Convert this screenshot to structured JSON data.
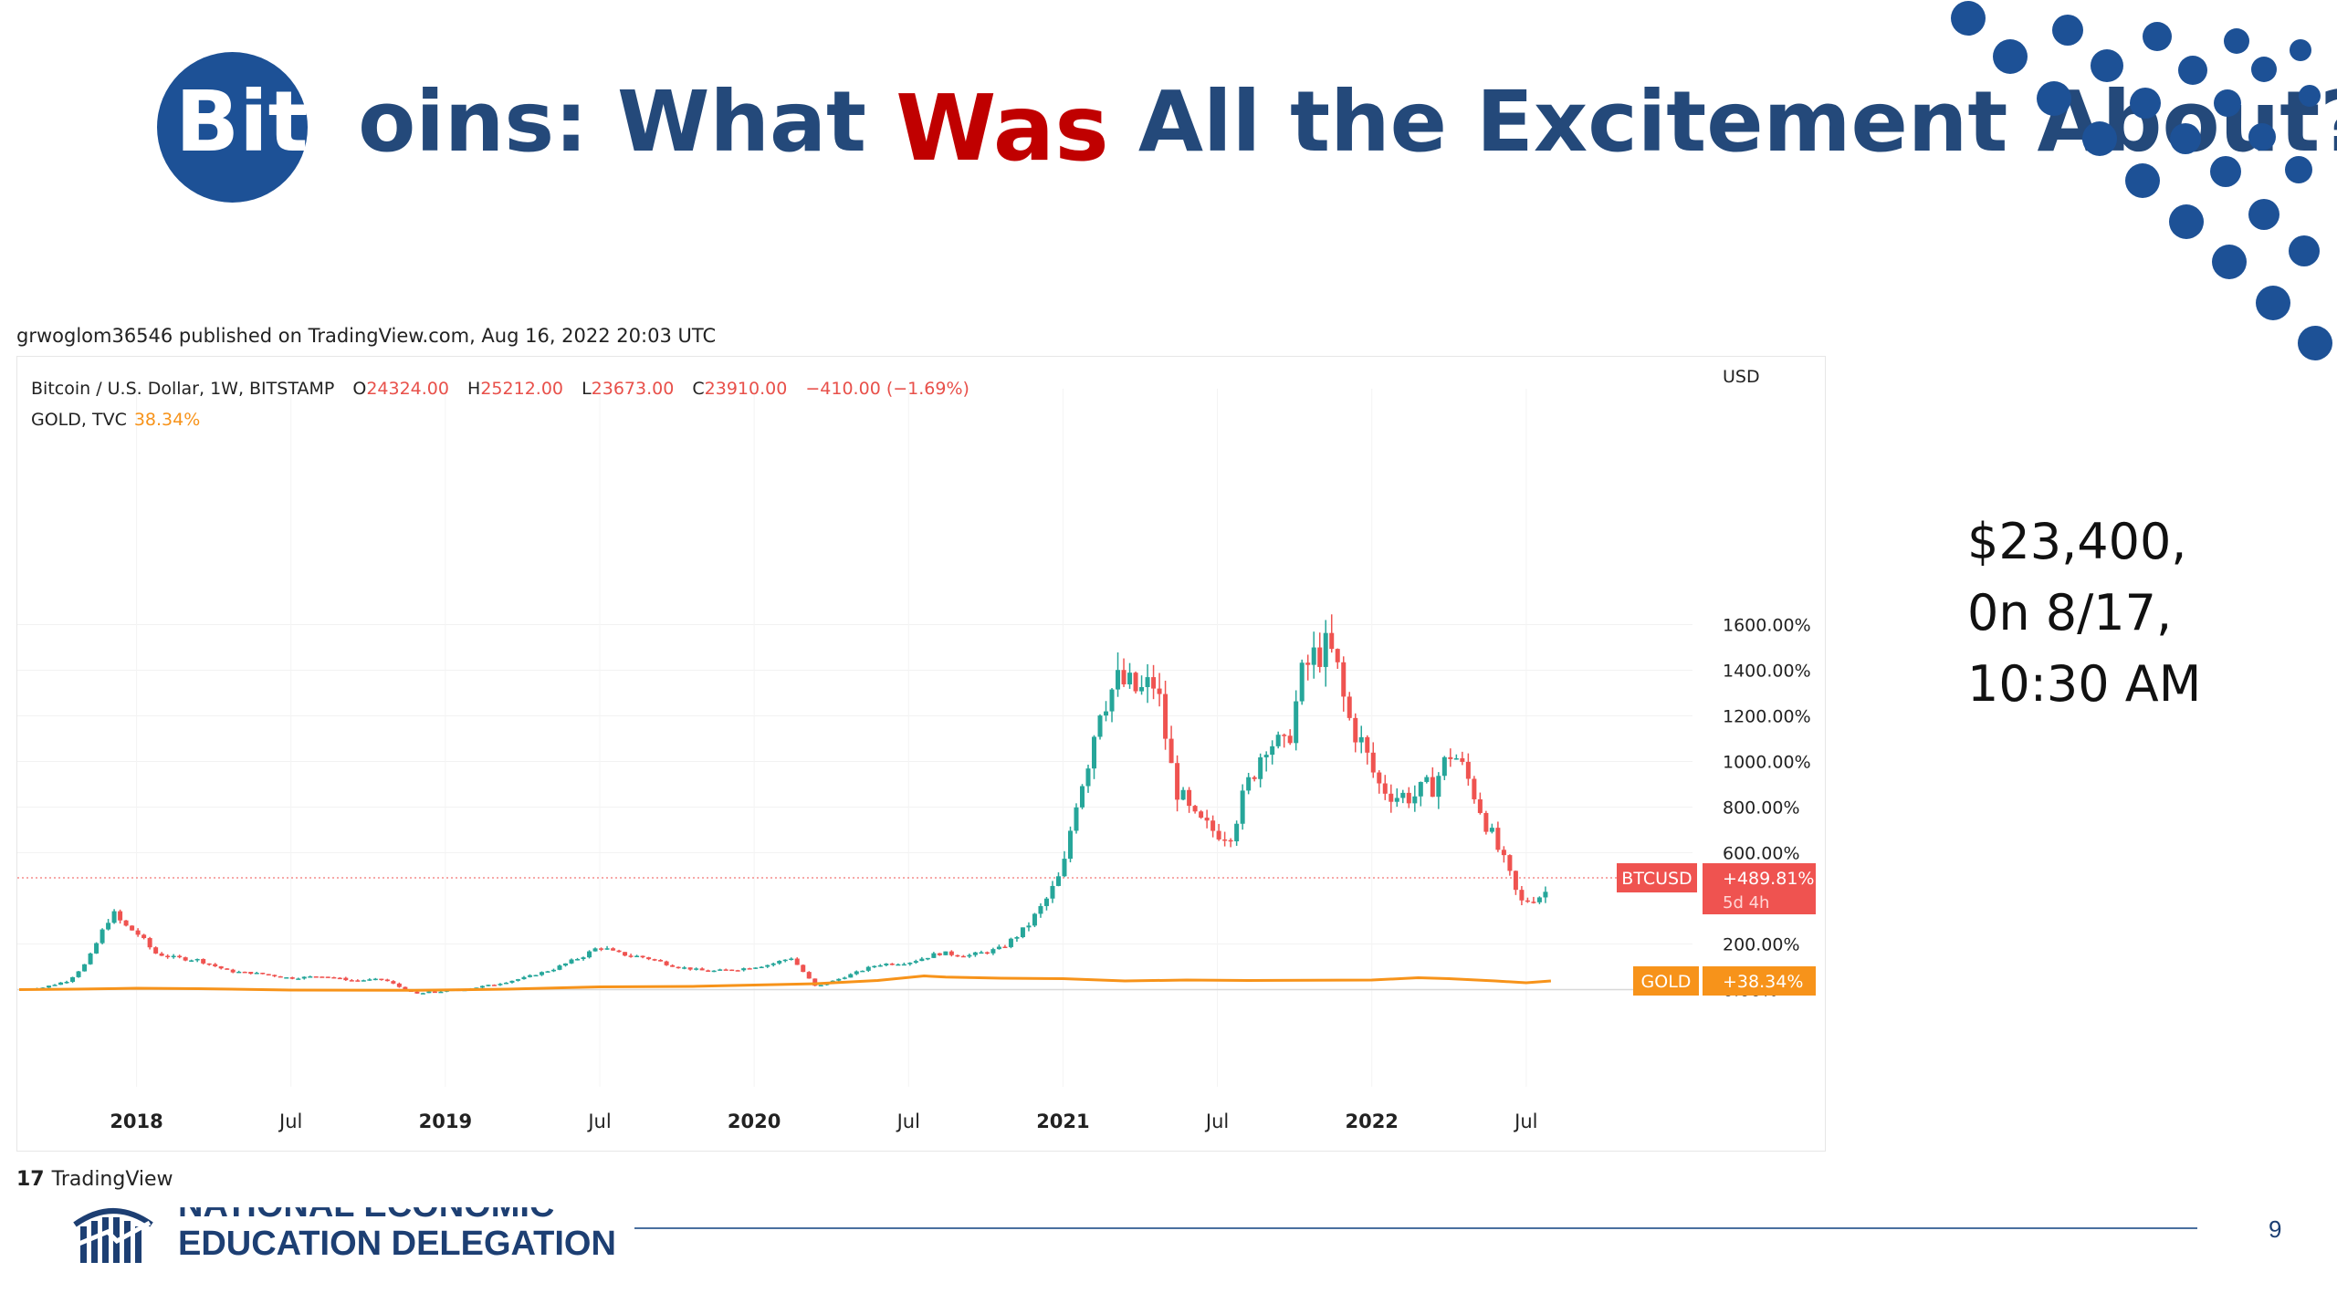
{
  "slide": {
    "title_part1": "Bitc",
    "title_part2": "oins: What ",
    "title_highlight": "Was",
    "title_part3": " All the Excitement About?",
    "price_note": [
      "$23,400,",
      "0n 8/17,",
      "10:30 AM"
    ],
    "page_number": "9",
    "organization": [
      "NATIONAL ECONOMIC",
      "EDUCATION DELEGATION"
    ],
    "colors": {
      "title": "#24497a",
      "highlight": "#c00000",
      "circle": "#1d5196",
      "dots": "#1d5196"
    }
  },
  "chart_header": {
    "publisher": "grwoglom36546 published on TradingView.com, Aug 16, 2022 20:03 UTC",
    "symbol": "Bitcoin / U.S. Dollar, 1W, BITSTAMP",
    "open_label": "O",
    "open": "24324.00",
    "high_label": "H",
    "high": "25212.00",
    "low_label": "L",
    "low": "23673.00",
    "close_label": "C",
    "close": "23910.00",
    "change": "−410.00 (−1.69%)",
    "compare_symbol": "GOLD, TVC",
    "compare_change": "38.34%",
    "branding": "TradingView"
  },
  "chart_data": {
    "type": "line",
    "y_unit": "USD",
    "y_ticks": [
      "0.00%",
      "200.00%",
      "600.00%",
      "800.00%",
      "1000.00%",
      "1200.00%",
      "1400.00%",
      "1600.00%"
    ],
    "ylim": [
      -50,
      1650
    ],
    "x_ticks": [
      {
        "label": "2018",
        "bold": true,
        "t": 2018.0
      },
      {
        "label": "Jul",
        "bold": false,
        "t": 2018.5
      },
      {
        "label": "2019",
        "bold": true,
        "t": 2019.0
      },
      {
        "label": "Jul",
        "bold": false,
        "t": 2019.5
      },
      {
        "label": "2020",
        "bold": true,
        "t": 2020.0
      },
      {
        "label": "Jul",
        "bold": false,
        "t": 2020.5
      },
      {
        "label": "2021",
        "bold": true,
        "t": 2021.0
      },
      {
        "label": "Jul",
        "bold": false,
        "t": 2021.5
      },
      {
        "label": "2022",
        "bold": true,
        "t": 2022.0
      },
      {
        "label": "Jul",
        "bold": false,
        "t": 2022.5
      }
    ],
    "xlim": [
      2017.62,
      2023.0
    ],
    "series": [
      {
        "name": "BTCUSD",
        "style": "candles",
        "colors": {
          "up": "#26a69a",
          "down": "#ef5350"
        },
        "last_label": "BTCUSD",
        "last_value": "+489.81%",
        "countdown": "5d 4h",
        "last_pct": 490,
        "points": [
          [
            2017.62,
            0
          ],
          [
            2017.7,
            10
          ],
          [
            2017.78,
            40
          ],
          [
            2017.84,
            120
          ],
          [
            2017.88,
            230
          ],
          [
            2017.92,
            340
          ],
          [
            2017.96,
            280
          ],
          [
            2018.0,
            250
          ],
          [
            2018.06,
            160
          ],
          [
            2018.12,
            140
          ],
          [
            2018.2,
            130
          ],
          [
            2018.3,
            80
          ],
          [
            2018.4,
            70
          ],
          [
            2018.5,
            50
          ],
          [
            2018.6,
            60
          ],
          [
            2018.7,
            40
          ],
          [
            2018.8,
            45
          ],
          [
            2018.9,
            -20
          ],
          [
            2018.96,
            -10
          ],
          [
            2019.05,
            0
          ],
          [
            2019.15,
            20
          ],
          [
            2019.25,
            50
          ],
          [
            2019.35,
            90
          ],
          [
            2019.45,
            150
          ],
          [
            2019.5,
            190
          ],
          [
            2019.55,
            160
          ],
          [
            2019.65,
            140
          ],
          [
            2019.75,
            100
          ],
          [
            2019.85,
            80
          ],
          [
            2019.95,
            90
          ],
          [
            2020.05,
            110
          ],
          [
            2020.12,
            140
          ],
          [
            2020.2,
            10
          ],
          [
            2020.3,
            60
          ],
          [
            2020.4,
            110
          ],
          [
            2020.5,
            120
          ],
          [
            2020.6,
            160
          ],
          [
            2020.7,
            150
          ],
          [
            2020.8,
            180
          ],
          [
            2020.88,
            270
          ],
          [
            2020.94,
            380
          ],
          [
            2021.0,
            520
          ],
          [
            2021.04,
            820
          ],
          [
            2021.08,
            1000
          ],
          [
            2021.12,
            1250
          ],
          [
            2021.18,
            1350
          ],
          [
            2021.25,
            1300
          ],
          [
            2021.3,
            1350
          ],
          [
            2021.36,
            900
          ],
          [
            2021.42,
            750
          ],
          [
            2021.48,
            700
          ],
          [
            2021.54,
            680
          ],
          [
            2021.6,
            900
          ],
          [
            2021.66,
            1100
          ],
          [
            2021.72,
            1050
          ],
          [
            2021.78,
            1400
          ],
          [
            2021.84,
            1500
          ],
          [
            2021.88,
            1450
          ],
          [
            2021.92,
            1200
          ],
          [
            2021.96,
            1100
          ],
          [
            2022.02,
            900
          ],
          [
            2022.08,
            850
          ],
          [
            2022.14,
            850
          ],
          [
            2022.2,
            900
          ],
          [
            2022.26,
            1050
          ],
          [
            2022.32,
            900
          ],
          [
            2022.38,
            700
          ],
          [
            2022.44,
            520
          ],
          [
            2022.48,
            380
          ],
          [
            2022.52,
            400
          ],
          [
            2022.56,
            420
          ],
          [
            2022.58,
            490
          ]
        ]
      },
      {
        "name": "GOLD",
        "style": "line",
        "color": "#f7931a",
        "last_label": "GOLD",
        "last_value": "+38.34%",
        "last_pct": 38,
        "points": [
          [
            2017.62,
            0
          ],
          [
            2017.8,
            2
          ],
          [
            2018.0,
            6
          ],
          [
            2018.2,
            4
          ],
          [
            2018.5,
            -2
          ],
          [
            2018.9,
            -3
          ],
          [
            2019.2,
            2
          ],
          [
            2019.5,
            12
          ],
          [
            2019.8,
            14
          ],
          [
            2020.0,
            20
          ],
          [
            2020.2,
            26
          ],
          [
            2020.4,
            40
          ],
          [
            2020.55,
            60
          ],
          [
            2020.62,
            55
          ],
          [
            2020.8,
            50
          ],
          [
            2021.0,
            48
          ],
          [
            2021.2,
            38
          ],
          [
            2021.4,
            42
          ],
          [
            2021.6,
            40
          ],
          [
            2021.8,
            41
          ],
          [
            2022.0,
            42
          ],
          [
            2022.15,
            52
          ],
          [
            2022.25,
            48
          ],
          [
            2022.4,
            38
          ],
          [
            2022.5,
            30
          ],
          [
            2022.58,
            38
          ]
        ]
      }
    ]
  }
}
